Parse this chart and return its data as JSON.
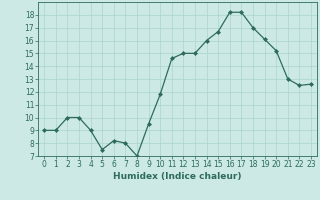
{
  "x": [
    0,
    1,
    2,
    3,
    4,
    5,
    6,
    7,
    8,
    9,
    10,
    11,
    12,
    13,
    14,
    15,
    16,
    17,
    18,
    19,
    20,
    21,
    22,
    23
  ],
  "y": [
    9,
    9,
    10,
    10,
    9,
    7.5,
    8.2,
    8,
    7,
    9.5,
    11.8,
    14.6,
    15,
    15,
    16,
    16.7,
    18.2,
    18.2,
    17,
    16.1,
    15.2,
    13,
    12.5,
    12.6
  ],
  "xlabel": "Humidex (Indice chaleur)",
  "xlim": [
    -0.5,
    23.5
  ],
  "ylim": [
    7,
    19
  ],
  "yticks": [
    7,
    8,
    9,
    10,
    11,
    12,
    13,
    14,
    15,
    16,
    17,
    18
  ],
  "xticks": [
    0,
    1,
    2,
    3,
    4,
    5,
    6,
    7,
    8,
    9,
    10,
    11,
    12,
    13,
    14,
    15,
    16,
    17,
    18,
    19,
    20,
    21,
    22,
    23
  ],
  "line_color": "#2e6b5e",
  "marker": "D",
  "marker_size": 2.0,
  "bg_color": "#cce9e5",
  "grid_color": "#aad4ce",
  "label_fontsize": 6.5,
  "tick_fontsize": 5.5
}
